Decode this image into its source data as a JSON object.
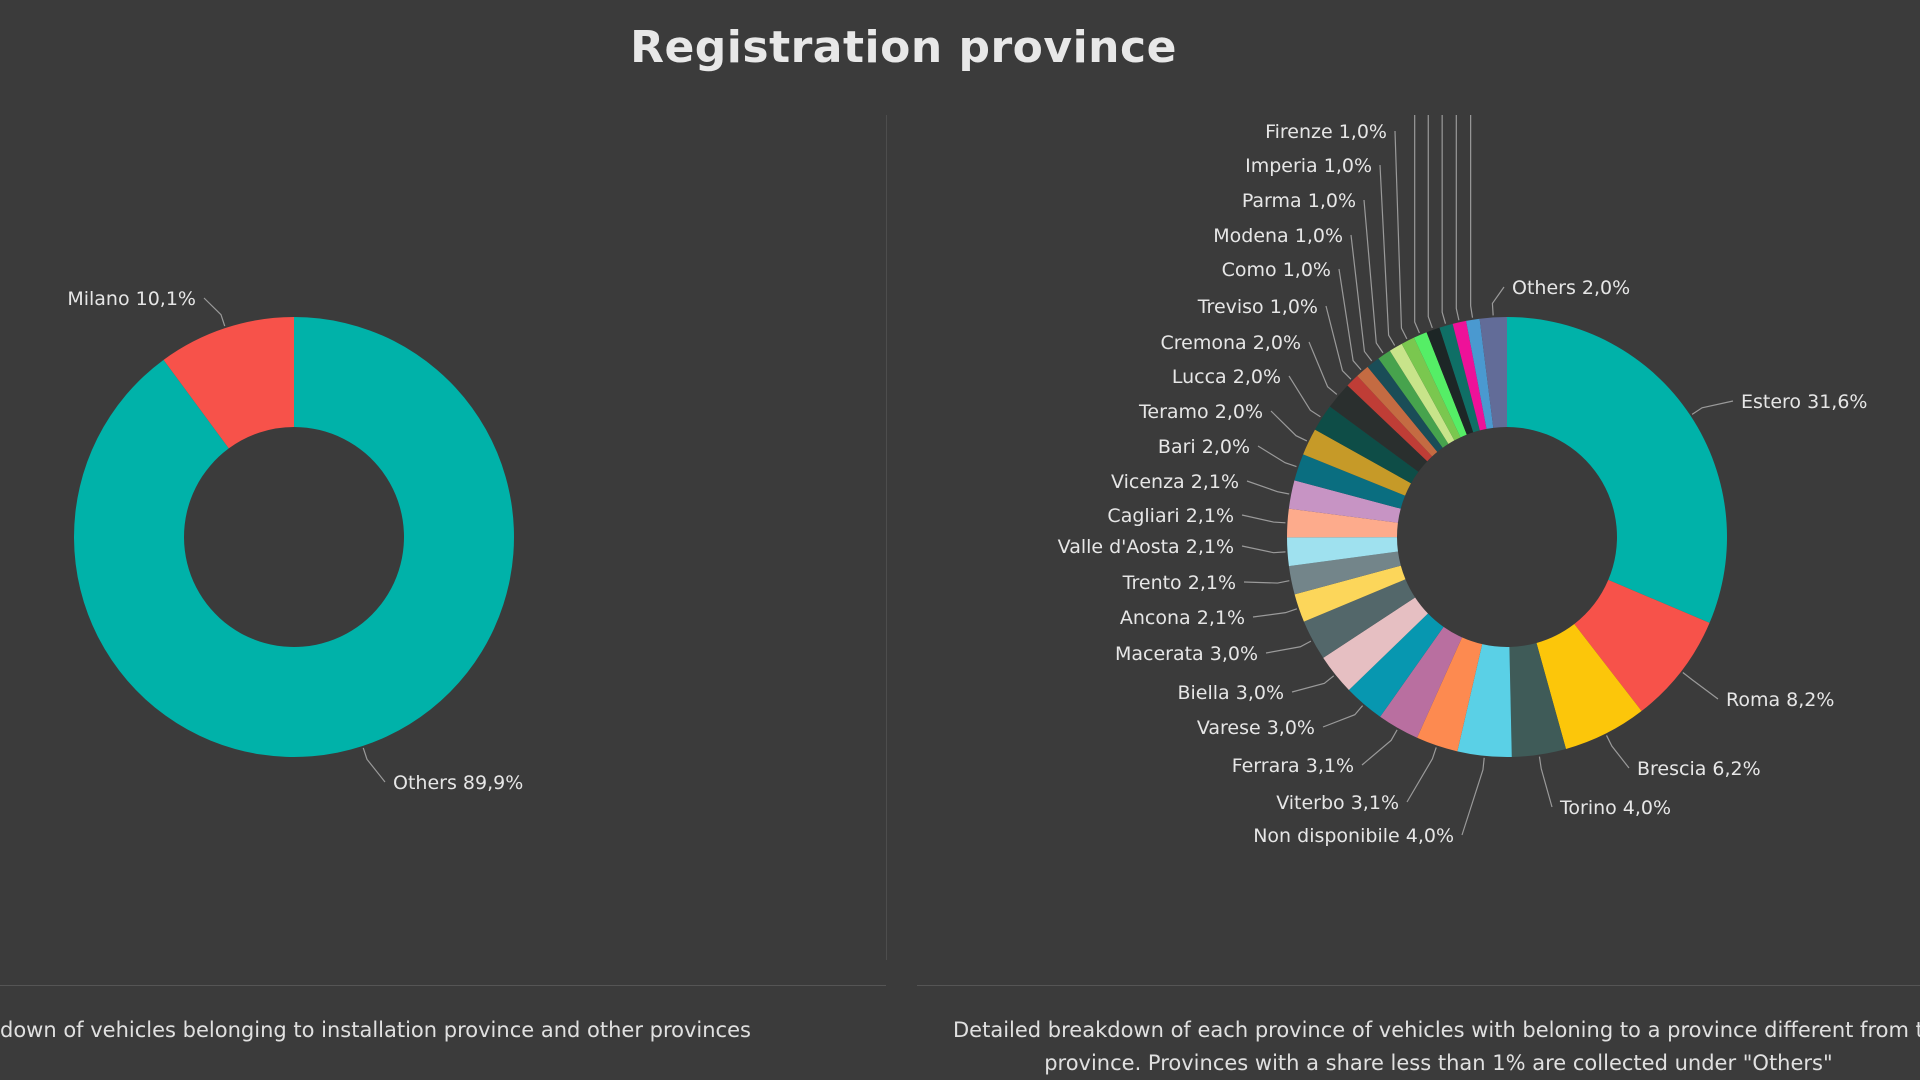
{
  "title": "Registration province",
  "captions": {
    "left": "down of vehicles belonging to installation province and other provinces",
    "right_line1": "Detailed breakdown of each province of vehicles with beloning to a province different from t",
    "right_line2": "province. Provinces with a share less than 1% are collected under \"Others\""
  },
  "chart_data": [
    {
      "type": "pie",
      "variant": "donut",
      "legend": "none",
      "start_angle_deg": 0,
      "direction": "clockwise",
      "slices": [
        {
          "label": "Others 89,9%",
          "value": 89.9,
          "color": "#00b2a9"
        },
        {
          "label": "Milano 10,1%",
          "value": 10.1,
          "color": "#f7524a"
        }
      ]
    },
    {
      "type": "pie",
      "variant": "donut",
      "legend": "none",
      "start_angle_deg": 0,
      "direction": "clockwise",
      "slices": [
        {
          "label": "Estero 31,6%",
          "value": 31.6,
          "color": "#00b2a9"
        },
        {
          "label": "Roma 8,2%",
          "value": 8.2,
          "color": "#f7524a"
        },
        {
          "label": "Brescia 6,2%",
          "value": 6.2,
          "color": "#fcc60a"
        },
        {
          "label": "Torino 4,0%",
          "value": 4.0,
          "color": "#3f5b58"
        },
        {
          "label": "Non disponibile 4,0%",
          "value": 4.0,
          "color": "#5ad0e6"
        },
        {
          "label": "Viterbo 3,1%",
          "value": 3.1,
          "color": "#fd8a50"
        },
        {
          "label": "Ferrara 3,1%",
          "value": 3.1,
          "color": "#b96fa0"
        },
        {
          "label": "Varese 3,0%",
          "value": 3.0,
          "color": "#0797b0"
        },
        {
          "label": "Biella 3,0%",
          "value": 3.0,
          "color": "#e6bfc2"
        },
        {
          "label": "Macerata 3,0%",
          "value": 3.0,
          "color": "#53676a"
        },
        {
          "label": "Ancona 2,1%",
          "value": 2.1,
          "color": "#fcd65a"
        },
        {
          "label": "Trento 2,1%",
          "value": 2.1,
          "color": "#73858a"
        },
        {
          "label": "Valle d'Aosta 2,1%",
          "value": 2.1,
          "color": "#9fe1ef"
        },
        {
          "label": "Cagliari 2,1%",
          "value": 2.1,
          "color": "#fdab8c"
        },
        {
          "label": "Vicenza 2,1%",
          "value": 2.1,
          "color": "#c794c4"
        },
        {
          "label": "Bari 2,0%",
          "value": 2.0,
          "color": "#0a6e80"
        },
        {
          "label": "Teramo 2,0%",
          "value": 2.0,
          "color": "#c69a28"
        },
        {
          "label": "Lucca 2,0%",
          "value": 2.0,
          "color": "#0e4d47"
        },
        {
          "label": "Cremona 2,0%",
          "value": 2.0,
          "color": "#2a2f2e"
        },
        {
          "label": "Treviso 1,0%",
          "value": 1.0,
          "color": "#bf3d36"
        },
        {
          "label": "Como 1,0%",
          "value": 1.0,
          "color": "#c46b42"
        },
        {
          "label": "Modena 1,0%",
          "value": 1.0,
          "color": "#1a4d57"
        },
        {
          "label": "Parma 1,0%",
          "value": 1.0,
          "color": "#47a34d"
        },
        {
          "label": "Imperia 1,0%",
          "value": 1.0,
          "color": "#c8e48a"
        },
        {
          "label": "Firenze 1,0%",
          "value": 1.0,
          "color": "#7ac74f"
        },
        {
          "label": "",
          "value": 1.0,
          "color": "#55ee66"
        },
        {
          "label": "",
          "value": 1.0,
          "color": "#1d2626"
        },
        {
          "label": "",
          "value": 1.0,
          "color": "#0f6f66"
        },
        {
          "label": "",
          "value": 1.0,
          "color": "#ee1199"
        },
        {
          "label": "",
          "value": 1.0,
          "color": "#4a99d0"
        },
        {
          "label": "Others 2,0%",
          "value": 2.0,
          "color": "#626c98"
        }
      ]
    }
  ]
}
